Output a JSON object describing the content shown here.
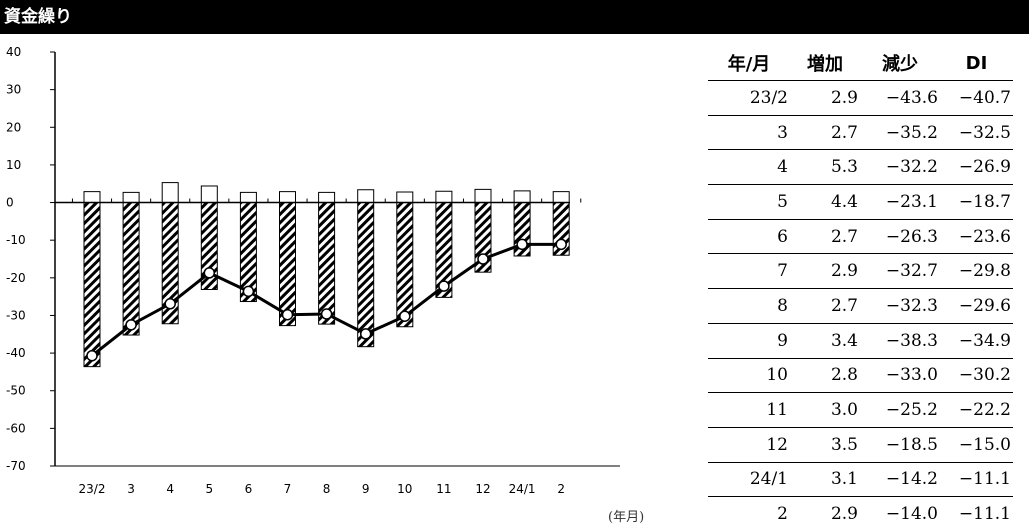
{
  "title": "資金繰り",
  "x_unit_label": "(年月)",
  "table": {
    "headers": [
      "年/月",
      "増加",
      "減少",
      "DI"
    ],
    "rows": [
      [
        "23/2",
        "2.9",
        "−43.6",
        "−40.7"
      ],
      [
        "3",
        "2.7",
        "−35.2",
        "−32.5"
      ],
      [
        "4",
        "5.3",
        "−32.2",
        "−26.9"
      ],
      [
        "5",
        "4.4",
        "−23.1",
        "−18.7"
      ],
      [
        "6",
        "2.7",
        "−26.3",
        "−23.6"
      ],
      [
        "7",
        "2.9",
        "−32.7",
        "−29.8"
      ],
      [
        "8",
        "2.7",
        "−32.3",
        "−29.6"
      ],
      [
        "9",
        "3.4",
        "−38.3",
        "−34.9"
      ],
      [
        "10",
        "2.8",
        "−33.0",
        "−30.2"
      ],
      [
        "11",
        "3.0",
        "−25.2",
        "−22.2"
      ],
      [
        "12",
        "3.5",
        "−18.5",
        "−15.0"
      ],
      [
        "24/1",
        "3.1",
        "−14.2",
        "−11.1"
      ],
      [
        "2",
        "2.9",
        "−14.0",
        "−11.1"
      ]
    ]
  },
  "chart_data": {
    "type": "bar",
    "categories": [
      "23/2",
      "3",
      "4",
      "5",
      "6",
      "7",
      "8",
      "9",
      "10",
      "11",
      "12",
      "24/1",
      "2"
    ],
    "series": [
      {
        "type": "bar",
        "style": "white",
        "values": [
          2.9,
          2.7,
          5.3,
          4.4,
          2.7,
          2.9,
          2.7,
          3.4,
          2.8,
          3.0,
          3.5,
          3.1,
          2.9
        ]
      },
      {
        "type": "bar",
        "style": "hatched",
        "values": [
          -43.6,
          -35.2,
          -32.2,
          -23.1,
          -26.3,
          -32.7,
          -32.3,
          -38.3,
          -33.0,
          -25.2,
          -18.5,
          -14.2,
          -14.0
        ]
      },
      {
        "type": "line",
        "marker": "circle",
        "values": [
          -40.7,
          -32.5,
          -26.9,
          -18.7,
          -23.6,
          -29.8,
          -29.6,
          -34.9,
          -30.2,
          -22.2,
          -15.0,
          -11.1,
          -11.1
        ]
      }
    ],
    "ylim": [
      -70,
      40
    ],
    "yticks": [
      40,
      30,
      20,
      10,
      0,
      -10,
      -20,
      -30,
      -40,
      -50,
      -60,
      -70
    ],
    "grid": false,
    "legend": "none"
  }
}
